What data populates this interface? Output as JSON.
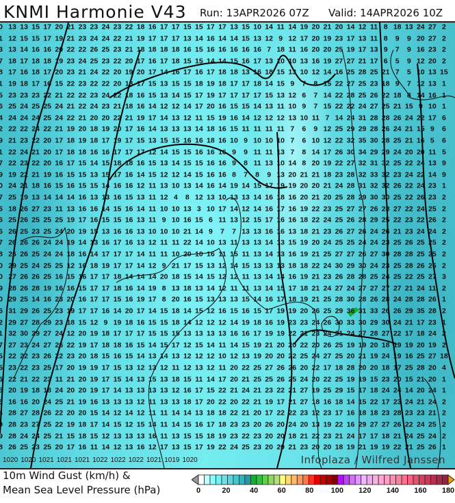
{
  "header": {
    "title": "KNMI Harmonie V43",
    "run": "Run: 13APR2026 07Z",
    "valid": "Valid: 14APR2026 10Z"
  },
  "map": {
    "field": "10m wind gust values (km/h)",
    "background_color": "#62dde6",
    "contour_color": "#000000",
    "credit": "Infoplaza / Wilfred Janssen",
    "isobar_labels": [
      "1020",
      "1020",
      "1021",
      "1021",
      "1021",
      "1022",
      "1022",
      "1022",
      "1021",
      "1019",
      "1020"
    ],
    "gust_rows": [
      [
        0,
        13,
        13,
        15,
        17,
        20,
        21,
        23,
        23,
        24,
        23,
        22,
        18,
        16,
        17,
        17,
        15,
        15,
        17,
        17,
        13,
        15,
        10,
        14,
        11,
        14,
        19,
        20,
        21,
        20,
        14,
        12,
        11,
        8,
        18,
        13,
        24,
        27,
        2
      ],
      [
        1,
        12,
        15,
        15,
        17,
        19,
        21,
        23,
        24,
        24,
        22,
        21,
        19,
        17,
        17,
        17,
        13,
        14,
        16,
        14,
        14,
        15,
        13,
        12,
        9,
        12,
        17,
        20,
        19,
        23,
        17,
        13,
        11,
        8,
        9,
        9,
        20,
        27,
        2
      ],
      [
        3,
        13,
        14,
        16,
        16,
        20,
        22,
        22,
        26,
        25,
        23,
        21,
        18,
        18,
        18,
        18,
        16,
        15,
        16,
        16,
        16,
        16,
        16,
        7,
        18,
        11,
        16,
        20,
        20,
        25,
        19,
        17,
        13,
        9,
        7,
        9,
        16,
        23,
        2
      ],
      [
        7,
        18,
        17,
        18,
        18,
        19,
        23,
        24,
        25,
        23,
        22,
        20,
        17,
        16,
        17,
        18,
        15,
        15,
        14,
        14,
        15,
        16,
        17,
        13,
        10,
        10,
        13,
        16,
        19,
        27,
        27,
        21,
        17,
        6,
        5,
        9,
        12,
        20,
        2
      ],
      [
        8,
        17,
        16,
        18,
        17,
        20,
        23,
        21,
        24,
        22,
        20,
        19,
        20,
        17,
        14,
        16,
        17,
        16,
        17,
        18,
        18,
        13,
        16,
        18,
        15,
        13,
        10,
        12,
        14,
        16,
        25,
        28,
        25,
        21,
        7,
        5,
        10,
        13,
        15
      ],
      [
        1,
        19,
        18,
        17,
        16,
        15,
        22,
        23,
        22,
        22,
        20,
        18,
        17,
        15,
        13,
        15,
        15,
        18,
        19,
        18,
        17,
        17,
        18,
        14,
        15,
        9,
        7,
        8,
        15,
        22,
        27,
        25,
        23,
        18,
        9,
        7,
        12,
        13,
        1
      ],
      [
        5,
        23,
        23,
        23,
        22,
        21,
        22,
        22,
        23,
        24,
        22,
        18,
        16,
        15,
        13,
        14,
        15,
        17,
        19,
        17,
        17,
        17,
        17,
        15,
        13,
        12,
        6,
        7,
        14,
        22,
        28,
        25,
        26,
        22,
        18,
        8,
        14,
        16,
        1
      ],
      [
        6,
        25,
        24,
        25,
        25,
        24,
        21,
        22,
        24,
        23,
        21,
        18,
        16,
        14,
        12,
        12,
        14,
        17,
        20,
        16,
        15,
        15,
        14,
        13,
        11,
        10,
        9,
        7,
        15,
        22,
        22,
        24,
        27,
        25,
        21,
        15,
        9,
        10,
        1
      ],
      [
        4,
        24,
        24,
        24,
        25,
        24,
        22,
        21,
        20,
        20,
        22,
        21,
        19,
        17,
        14,
        13,
        12,
        11,
        15,
        19,
        16,
        14,
        12,
        12,
        12,
        13,
        10,
        11,
        7,
        14,
        24,
        31,
        28,
        28,
        26,
        24,
        22,
        17,
        6
      ],
      [
        2,
        22,
        22,
        24,
        22,
        21,
        19,
        20,
        18,
        19,
        20,
        17,
        16,
        14,
        13,
        13,
        13,
        14,
        18,
        16,
        15,
        11,
        11,
        11,
        11,
        7,
        6,
        9,
        12,
        25,
        29,
        29,
        28,
        26,
        24,
        21,
        15,
        9,
        6
      ],
      [
        9,
        21,
        23,
        22,
        20,
        17,
        18,
        19,
        18,
        17,
        19,
        17,
        15,
        13,
        15,
        15,
        16,
        16,
        18,
        16,
        10,
        9,
        10,
        10,
        10,
        7,
        6,
        10,
        12,
        22,
        32,
        35,
        30,
        28,
        25,
        21,
        16,
        5,
        6
      ],
      [
        1,
        22,
        24,
        21,
        20,
        17,
        18,
        18,
        16,
        16,
        17,
        17,
        17,
        12,
        14,
        15,
        15,
        16,
        16,
        16,
        9,
        9,
        11,
        11,
        13,
        7,
        8,
        14,
        17,
        26,
        30,
        34,
        29,
        29,
        24,
        20,
        20,
        11,
        5
      ],
      [
        7,
        22,
        23,
        22,
        20,
        16,
        17,
        15,
        14,
        15,
        18,
        18,
        16,
        15,
        13,
        14,
        15,
        15,
        16,
        16,
        9,
        8,
        11,
        13,
        10,
        14,
        8,
        20,
        19,
        22,
        27,
        32,
        31,
        32,
        25,
        22,
        24,
        13,
        9
      ],
      [
        9,
        19,
        22,
        21,
        19,
        16,
        15,
        15,
        13,
        15,
        17,
        16,
        14,
        15,
        12,
        12,
        14,
        15,
        16,
        16,
        8,
        7,
        8,
        9,
        13,
        20,
        21,
        21,
        18,
        23,
        28,
        32,
        33,
        32,
        23,
        24,
        22,
        14,
        9
      ],
      [
        0,
        24,
        21,
        18,
        16,
        15,
        16,
        15,
        15,
        14,
        16,
        16,
        12,
        11,
        13,
        10,
        13,
        14,
        16,
        14,
        19,
        14,
        15,
        17,
        19,
        19,
        20,
        20,
        21,
        24,
        28,
        31,
        32,
        32,
        26,
        22,
        24,
        23,
        1
      ],
      [
        7,
        25,
        19,
        13,
        14,
        14,
        14,
        16,
        13,
        13,
        16,
        15,
        13,
        11,
        12,
        4,
        8,
        12,
        13,
        10,
        13,
        13,
        14,
        16,
        18,
        16,
        20,
        21,
        20,
        25,
        28,
        29,
        30,
        30,
        25,
        22,
        26,
        23,
        2
      ],
      [
        6,
        18,
        26,
        27,
        23,
        11,
        13,
        16,
        16,
        14,
        15,
        16,
        14,
        11,
        10,
        10,
        13,
        3,
        10,
        17,
        14,
        12,
        14,
        16,
        17,
        16,
        19,
        22,
        23,
        25,
        27,
        27,
        26,
        28,
        27,
        22,
        24,
        25,
        2
      ],
      [
        6,
        25,
        26,
        25,
        25,
        25,
        19,
        17,
        16,
        15,
        15,
        16,
        13,
        11,
        9,
        10,
        16,
        15,
        6,
        11,
        13,
        12,
        15,
        17,
        16,
        16,
        18,
        22,
        24,
        25,
        26,
        28,
        29,
        25,
        22,
        23,
        22,
        26,
        2
      ],
      [
        6,
        26,
        25,
        23,
        25,
        24,
        20,
        19,
        15,
        13,
        16,
        16,
        13,
        10,
        10,
        10,
        21,
        14,
        9,
        7,
        7,
        13,
        13,
        16,
        16,
        13,
        18,
        21,
        23,
        26,
        27,
        26,
        24,
        26,
        21,
        23,
        24,
        24,
        2
      ],
      [
        7,
        26,
        26,
        26,
        24,
        24,
        19,
        14,
        13,
        16,
        17,
        16,
        13,
        12,
        11,
        11,
        22,
        14,
        10,
        13,
        11,
        13,
        13,
        14,
        13,
        15,
        19,
        20,
        24,
        25,
        25,
        24,
        24,
        23,
        25,
        26,
        25,
        25,
        2
      ],
      [
        8,
        26,
        26,
        25,
        24,
        24,
        18,
        16,
        14,
        17,
        17,
        17,
        14,
        11,
        11,
        10,
        20,
        10,
        16,
        11,
        15,
        11,
        13,
        14,
        13,
        16,
        19,
        21,
        25,
        27,
        27,
        26,
        27,
        30,
        28,
        28,
        25,
        25,
        2
      ],
      [
        0,
        29,
        25,
        24,
        25,
        25,
        12,
        16,
        18,
        19,
        17,
        17,
        14,
        12,
        9,
        21,
        17,
        15,
        13,
        12,
        14,
        15,
        13,
        13,
        13,
        18,
        18,
        22,
        24,
        30,
        29,
        30,
        24,
        23,
        25,
        28,
        26,
        26,
        2
      ],
      [
        0,
        27,
        26,
        26,
        25,
        16,
        15,
        16,
        17,
        17,
        18,
        14,
        14,
        14,
        20,
        18,
        15,
        14,
        15,
        12,
        12,
        11,
        13,
        14,
        14,
        16,
        19,
        21,
        23,
        26,
        28,
        28,
        25,
        24,
        25,
        22,
        25,
        27,
        3
      ],
      [
        9,
        28,
        26,
        28,
        19,
        16,
        16,
        15,
        17,
        17,
        18,
        16,
        14,
        19,
        8,
        13,
        18,
        13,
        14,
        12,
        11,
        11,
        13,
        14,
        15,
        17,
        18,
        21,
        24,
        27,
        24,
        27,
        27,
        27,
        27,
        21,
        24,
        11,
        2
      ],
      [
        0,
        29,
        25,
        14,
        16,
        23,
        20,
        16,
        17,
        17,
        15,
        16,
        19,
        17,
        8,
        20,
        16,
        15,
        13,
        13,
        13,
        15,
        14,
        16,
        17,
        18,
        19,
        21,
        25,
        28,
        30,
        28,
        26,
        28,
        24,
        28,
        28,
        26,
        1
      ],
      [
        6,
        31,
        29,
        26,
        25,
        23,
        19,
        17,
        17,
        16,
        14,
        20,
        17,
        14,
        15,
        18,
        14,
        15,
        12,
        16,
        15,
        16,
        15,
        17,
        19,
        19,
        20,
        26,
        25,
        29,
        36,
        31,
        33,
        26,
        26,
        29,
        35,
        28,
        2
      ],
      [
        2,
        29,
        27,
        28,
        29,
        23,
        18,
        15,
        12,
        9,
        19,
        18,
        16,
        15,
        15,
        18,
        14,
        12,
        12,
        12,
        14,
        19,
        18,
        16,
        19,
        23,
        23,
        24,
        26,
        30,
        33,
        30,
        29,
        30,
        24,
        21,
        17,
        23,
        1
      ],
      [
        1,
        32,
        30,
        29,
        27,
        24,
        12,
        20,
        19,
        18,
        17,
        17,
        17,
        15,
        15,
        15,
        13,
        13,
        13,
        13,
        16,
        16,
        17,
        19,
        19,
        22,
        21,
        23,
        24,
        31,
        24,
        27,
        28,
        27,
        22,
        17,
        18,
        24,
        2
      ],
      [
        7,
        27,
        23,
        24,
        27,
        26,
        22,
        19,
        17,
        18,
        18,
        16,
        15,
        14,
        15,
        17,
        12,
        15,
        14,
        11,
        14,
        15,
        19,
        21,
        20,
        20,
        22,
        20,
        26,
        25,
        19,
        19,
        20,
        18,
        19,
        19,
        20,
        19,
        2
      ],
      [
        5,
        22,
        22,
        23,
        26,
        22,
        23,
        20,
        18,
        15,
        16,
        15,
        14,
        13,
        14,
        13,
        12,
        12,
        12,
        10,
        12,
        13,
        19,
        20,
        20,
        22,
        25,
        24,
        27,
        25,
        20,
        21,
        19,
        24,
        19,
        16,
        25,
        27,
        18
      ],
      [
        5,
        23,
        22,
        23,
        25,
        17,
        20,
        19,
        19,
        17,
        15,
        13,
        12,
        13,
        12,
        11,
        12,
        13,
        12,
        11,
        20,
        22,
        25,
        27,
        26,
        26,
        20,
        22,
        17,
        18,
        28,
        20,
        20,
        18,
        17,
        25,
        28,
        20,
        4
      ],
      [
        6,
        22,
        21,
        22,
        23,
        11,
        21,
        20,
        19,
        17,
        15,
        14,
        13,
        15,
        13,
        18,
        15,
        11,
        14,
        17,
        20,
        21,
        25,
        25,
        26,
        25,
        24,
        20,
        22,
        25,
        19,
        19,
        15,
        23,
        20,
        15,
        21,
        20,
        1
      ],
      [
        5,
        20,
        19,
        18,
        18,
        24,
        20,
        20,
        19,
        17,
        14,
        13,
        13,
        13,
        13,
        12,
        16,
        17,
        15,
        22,
        21,
        24,
        21,
        23,
        22,
        21,
        27,
        19,
        25,
        29,
        15,
        17,
        18,
        24,
        24,
        14,
        20,
        24,
        1
      ],
      [
        5,
        16,
        16,
        20,
        24,
        25,
        21,
        19,
        16,
        13,
        13,
        13,
        12,
        11,
        13,
        13,
        18,
        17,
        20,
        22,
        20,
        22,
        21,
        19,
        17,
        21,
        27,
        18,
        16,
        18,
        14,
        15,
        22,
        17,
        23,
        24,
        21,
        24,
        2
      ],
      [
        4,
        28,
        27,
        28,
        26,
        22,
        20,
        20,
        15,
        14,
        12,
        14,
        12,
        11,
        11,
        14,
        14,
        13,
        18,
        18,
        22,
        21,
        20,
        17,
        22,
        22,
        23,
        12,
        23,
        17,
        16,
        18,
        18,
        23,
        28,
        23,
        23,
        21,
        2
      ],
      [
        9,
        28,
        23,
        27,
        25,
        22,
        19,
        18,
        17,
        14,
        15,
        12,
        15,
        14,
        11,
        14,
        15,
        16,
        17,
        18,
        23,
        23,
        20,
        26,
        20,
        24,
        20,
        13,
        19,
        22,
        16,
        29,
        27,
        27,
        26,
        22,
        24,
        25,
        2
      ],
      [
        9,
        28,
        24,
        24,
        25,
        21,
        15,
        18,
        15,
        12,
        13,
        13,
        13,
        16,
        11,
        13,
        15,
        15,
        18,
        19,
        23,
        22,
        23,
        20,
        20,
        18,
        21,
        22,
        23,
        21,
        24,
        17,
        17,
        18,
        21,
        24,
        25,
        24,
        2
      ],
      [
        8,
        26,
        25,
        23,
        25,
        20,
        17,
        16,
        11,
        14,
        12,
        13,
        16,
        12,
        17,
        13,
        15,
        17,
        19,
        22,
        24,
        25,
        23,
        20,
        20,
        21,
        23,
        20,
        20,
        18,
        19,
        21,
        19,
        19,
        22,
        21,
        25,
        26,
        1
      ]
    ]
  },
  "legend": {
    "line1": "10m Wind Gust (km/h) &",
    "line2": "Mean Sea Level Pressure (hPa)",
    "ticks": [
      "0",
      "20",
      "40",
      "60",
      "80",
      "100",
      "120",
      "140",
      "160",
      "180"
    ],
    "scale_min": 0,
    "scale_max": 180,
    "colors": [
      "#ffffff",
      "#c0ffff",
      "#88ffff",
      "#78f0f0",
      "#68e2e8",
      "#58d4dc",
      "#48c4cc",
      "#38b0bc",
      "#2898a8",
      "#10b030",
      "#30c040",
      "#60d050",
      "#90d860",
      "#b0e070",
      "#ffff80",
      "#ffd878",
      "#ffb868",
      "#ff9858",
      "#ff7848",
      "#ff3020",
      "#e80000",
      "#c80000",
      "#a80000",
      "#800000",
      "#b010ff",
      "#c040ff",
      "#d070ff",
      "#e098ff",
      "#f0b8ff",
      "#f0a8ec",
      "#f8b0e0",
      "#ffa8d4",
      "#ffa0c4",
      "#ff90b4",
      "#ff80a0",
      "#ff7090",
      "#f86080",
      "#e85070",
      "#d84060",
      "#c83858",
      "#b83050",
      "#a82848",
      "#982040"
    ],
    "under_color": "#999999",
    "over_color": "#f0a000"
  }
}
